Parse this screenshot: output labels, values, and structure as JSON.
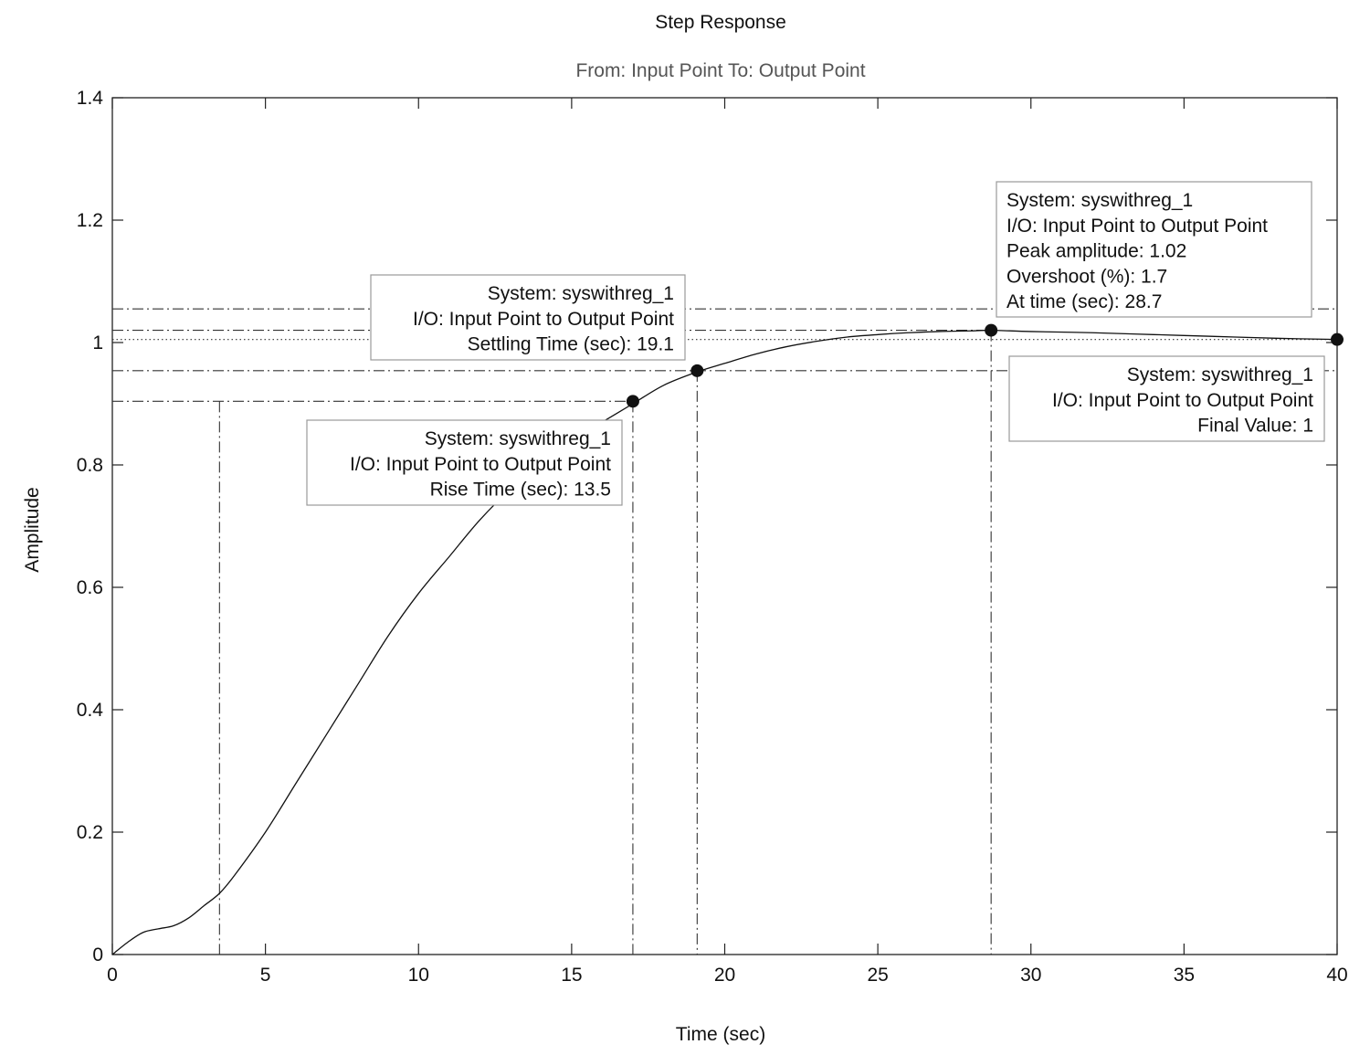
{
  "chart_data": {
    "type": "line",
    "title": "Step Response",
    "subtitle": "From: Input Point  To: Output Point",
    "xlabel": "Time (sec)",
    "ylabel": "Amplitude",
    "xlim": [
      0,
      40
    ],
    "ylim": [
      0,
      1.4
    ],
    "xticks": [
      0,
      5,
      10,
      15,
      20,
      25,
      30,
      35,
      40
    ],
    "xtick_labels": [
      "0",
      "5",
      "10",
      "15",
      "20",
      "25",
      "30",
      "35",
      "40"
    ],
    "yticks": [
      0,
      0.2,
      0.4,
      0.6,
      0.8,
      1,
      1.2,
      1.4
    ],
    "ytick_labels": [
      "0",
      "0.2",
      "0.4",
      "0.6",
      "0.8",
      "1",
      "1.2",
      "1.4"
    ],
    "grid": false,
    "series": [
      {
        "x": [
          0,
          0.5,
          1,
          1.5,
          2,
          2.5,
          3,
          3.5,
          4,
          5,
          6,
          7,
          8,
          9,
          10,
          11,
          12,
          13,
          14,
          15,
          16,
          17,
          18,
          19.1,
          20,
          21,
          22,
          23,
          24,
          25,
          26,
          27,
          28,
          28.7,
          30,
          32,
          34,
          36,
          38,
          40
        ],
        "y": [
          0,
          0.02,
          0.036,
          0.042,
          0.047,
          0.06,
          0.08,
          0.1,
          0.13,
          0.2,
          0.28,
          0.36,
          0.44,
          0.52,
          0.59,
          0.65,
          0.71,
          0.76,
          0.8,
          0.84,
          0.87,
          0.9,
          0.93,
          0.952,
          0.966,
          0.981,
          0.993,
          1.002,
          1.009,
          1.013,
          1.016,
          1.018,
          1.019,
          1.02,
          1.018,
          1.016,
          1.013,
          1.01,
          1.007,
          1.005
        ]
      }
    ],
    "reference_lines": {
      "final_value": 1.005,
      "settling_band": [
        0.954,
        1.055
      ],
      "rise_levels": [
        0.1,
        0.904
      ]
    },
    "characteristics": [
      {
        "kind": "rise",
        "x": 17.0,
        "y": 0.904,
        "start_x": 3.5,
        "lines": [
          "System: syswithreg_1",
          "I/O: Input Point to Output Point",
          "Rise Time (sec): 13.5"
        ]
      },
      {
        "kind": "settling",
        "x": 19.1,
        "y": 0.954,
        "lines": [
          "System: syswithreg_1",
          "I/O: Input Point to Output Point",
          "Settling Time (sec): 19.1"
        ]
      },
      {
        "kind": "peak",
        "x": 28.7,
        "y": 1.02,
        "lines": [
          "System: syswithreg_1",
          "I/O: Input Point to Output Point",
          "Peak amplitude: 1.02",
          "Overshoot (%): 1.7",
          "At time (sec): 28.7"
        ]
      },
      {
        "kind": "final",
        "x": 40,
        "y": 1.005,
        "lines": [
          "System: syswithreg_1",
          "I/O: Input Point to Output Point",
          "Final Value: 1"
        ]
      }
    ]
  }
}
